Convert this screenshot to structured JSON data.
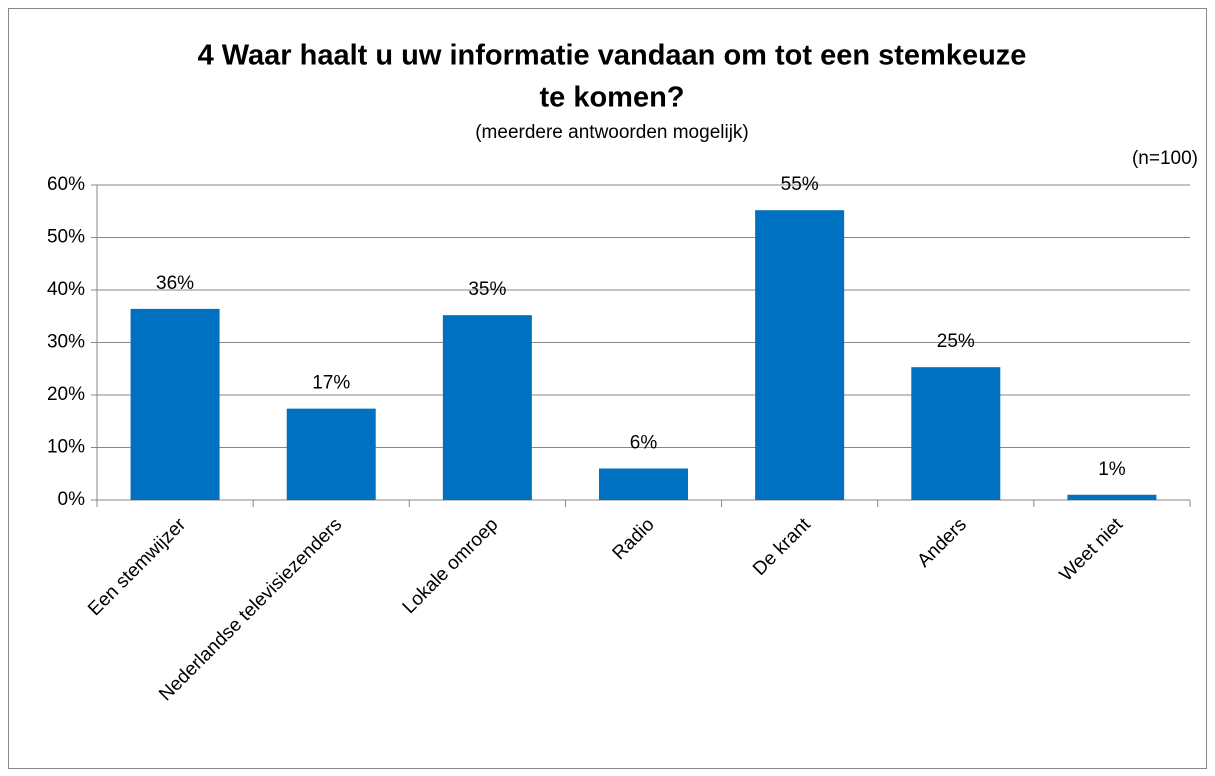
{
  "chart_data": {
    "type": "bar",
    "title": [
      "4 Waar haalt u uw informatie vandaan om tot een stemkeuze",
      "te komen?"
    ],
    "subtitle": "(meerdere antwoorden mogelijk)",
    "annotation": "(n=100)",
    "categories": [
      "Een stemwijzer",
      "Nederlandse televisiezenders",
      "Lokale omroep",
      "Radio",
      "De krant",
      "Anders",
      "Weet niet"
    ],
    "values": [
      36.4,
      17.4,
      35.2,
      6,
      55.2,
      25.3,
      1
    ],
    "value_labels": [
      "36%",
      "17%",
      "35%",
      "6%",
      "55%",
      "25%",
      "1%"
    ],
    "color": "#0070c0",
    "ylim": [
      0,
      60
    ],
    "yticks": [
      {
        "value": 0,
        "label": "0%"
      },
      {
        "value": 10,
        "label": "10%"
      },
      {
        "value": 20,
        "label": "20%"
      },
      {
        "value": 30,
        "label": "30%"
      },
      {
        "value": 40,
        "label": "40%"
      },
      {
        "value": 50,
        "label": "50%"
      },
      {
        "value": 60,
        "label": "60%"
      }
    ],
    "grid": true
  }
}
